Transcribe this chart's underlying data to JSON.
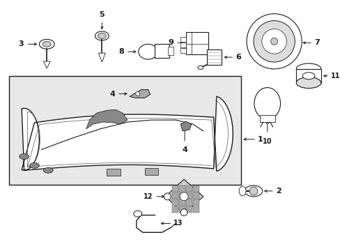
{
  "bg_color": "#ffffff",
  "line_color": "#1a1a1a",
  "box_bg": "#e8e8e8",
  "headlamp_bg": "#ffffff",
  "component_lw": 0.8,
  "fig_w": 4.89,
  "fig_h": 3.6,
  "dpi": 100
}
